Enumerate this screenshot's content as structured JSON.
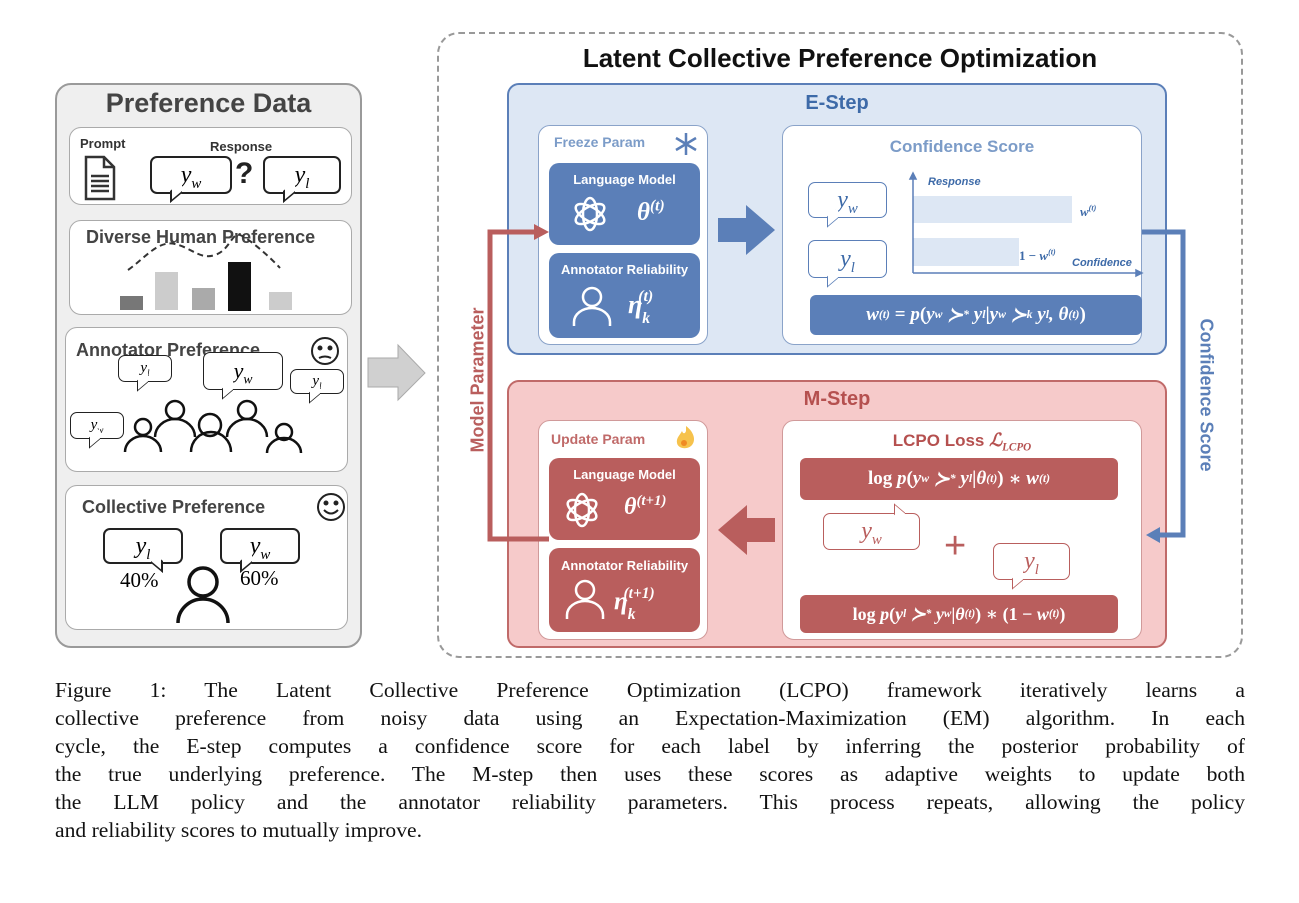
{
  "left": {
    "title": "Preference Data",
    "prompt": "Prompt",
    "response": "Response",
    "question": "?",
    "diverse": "Diverse Human Preference",
    "annotator": "Annotator Preference",
    "collective": "Collective Preference",
    "pct_l": "40%",
    "pct_w": "60%"
  },
  "main": {
    "title": "Latent Collective Preference Optimization",
    "estep": {
      "title": "E-Step",
      "freeze": "Freeze Param",
      "lm": "Language Model",
      "ar": "Annotator Reliability",
      "conf_title": "Confidence Score",
      "axis_y": "Response",
      "axis_x": "Confidence",
      "conf_values": {
        "w": 0.6,
        "one_minus_w": 0.4
      }
    },
    "mstep": {
      "title": "M-Step",
      "update": "Update Param",
      "lm": "Language Model",
      "ar": "Annotator Reliability",
      "loss_title": "LCPO Loss"
    },
    "side_left": "Model Parameter",
    "side_right": "Confidence Score",
    "colors": {
      "blue": "#5b7fb8",
      "red": "#b95e5d",
      "blue_bg": "#dde7f4",
      "red_bg": "#f6caca"
    }
  },
  "caption": [
    "Figure 1: The Latent Collective Preference Optimization (LCPO) framework iteratively learns a",
    "collective preference from noisy data using an Expectation-Maximization (EM) algorithm. In each",
    "cycle, the E-step computes a confidence score for each label by inferring the posterior probability of",
    "the true underlying preference. The M-step then uses these scores as adaptive weights to update both",
    "the LLM policy and the annotator reliability parameters. This process repeats, allowing the policy",
    "and reliability scores to mutually improve."
  ]
}
